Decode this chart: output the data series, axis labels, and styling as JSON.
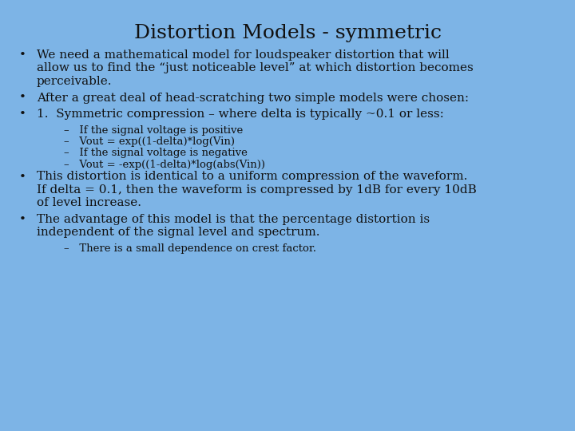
{
  "title": "Distortion Models - symmetric",
  "background_color": "#7db4e6",
  "title_fontsize": 18,
  "text_color": "#111111",
  "bullet_fontsize": 11,
  "sub_fontsize": 9.5,
  "bullets": [
    {
      "type": "bullet",
      "indent": 0,
      "lines": [
        "We need a mathematical model for loudspeaker distortion that will",
        "allow us to find the “just noticeable level” at which distortion becomes",
        "perceivable."
      ]
    },
    {
      "type": "bullet",
      "indent": 0,
      "lines": [
        "After a great deal of head-scratching two simple models were chosen:"
      ]
    },
    {
      "type": "bullet",
      "indent": 0,
      "lines": [
        "1.  Symmetric compression – where delta is typically ~0.1 or less:"
      ]
    },
    {
      "type": "sub",
      "indent": 1,
      "lines": [
        "–   If the signal voltage is positive"
      ]
    },
    {
      "type": "sub",
      "indent": 1,
      "lines": [
        "–   Vout = exp((1-delta)*log(Vin)"
      ]
    },
    {
      "type": "sub",
      "indent": 1,
      "lines": [
        "–   If the signal voltage is negative"
      ]
    },
    {
      "type": "sub",
      "indent": 1,
      "lines": [
        "–   Vout = -exp((1-delta)*log(abs(Vin))"
      ]
    },
    {
      "type": "bullet",
      "indent": 0,
      "lines": [
        "This distortion is identical to a uniform compression of the waveform.",
        "If delta = 0.1, then the waveform is compressed by 1dB for every 10dB",
        "of level increase."
      ]
    },
    {
      "type": "bullet",
      "indent": 0,
      "lines": [
        "The advantage of this model is that the percentage distortion is",
        "independent of the signal level and spectrum."
      ]
    },
    {
      "type": "sub",
      "indent": 1,
      "lines": [
        "–   There is a small dependence on crest factor."
      ]
    }
  ]
}
